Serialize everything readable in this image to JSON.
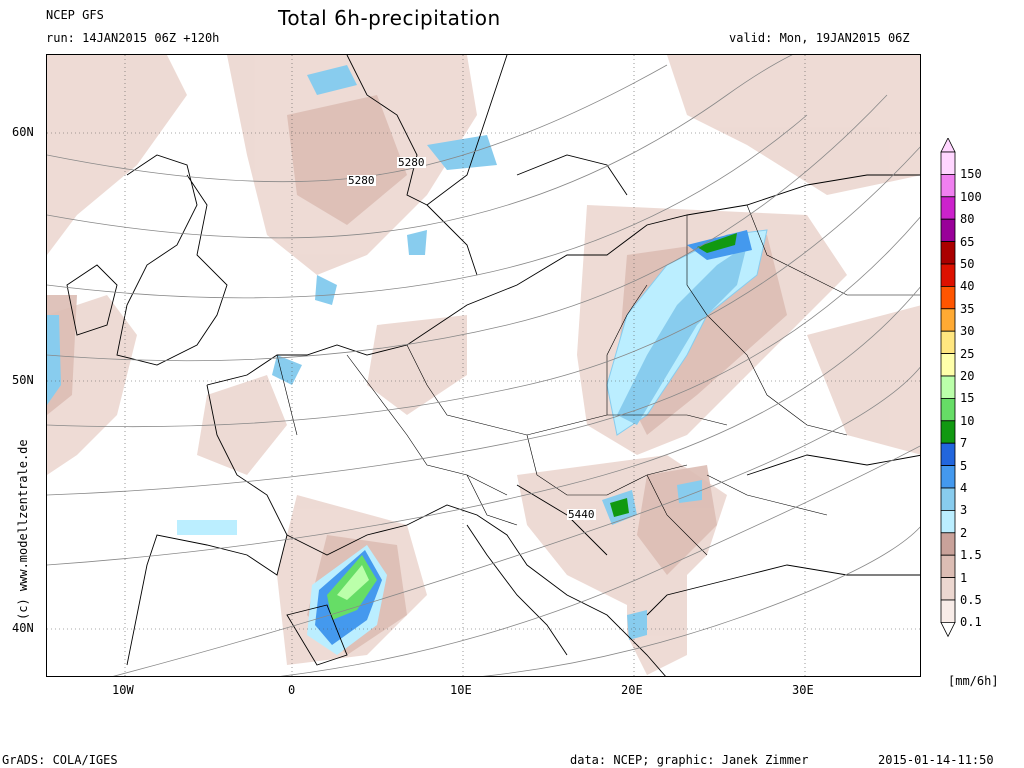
{
  "header": {
    "model": "NCEP GFS",
    "run": "run: 14JAN2015 06Z +120h",
    "title": "Total 6h-precipitation",
    "valid": "valid: Mon, 19JAN2015 06Z"
  },
  "map": {
    "x_ticks": [
      "10W",
      "0",
      "10E",
      "20E",
      "30E"
    ],
    "y_ticks": [
      "60N",
      "50N",
      "40N"
    ],
    "contour_labels": [
      "5280",
      "5280",
      "5440"
    ],
    "watermark": "(c) www.modellzentrale.de"
  },
  "legend": {
    "unit": "[mm/6h]",
    "levels": [
      "150",
      "100",
      "80",
      "65",
      "50",
      "40",
      "35",
      "30",
      "25",
      "20",
      "15",
      "10",
      "7",
      "5",
      "4",
      "3",
      "2",
      "1.5",
      "1",
      "0.5",
      "0.1"
    ],
    "colors": [
      "#ffd6ff",
      "#f080f0",
      "#cc22cc",
      "#990099",
      "#aa0000",
      "#dd1100",
      "#ff5500",
      "#ffaa33",
      "#ffe680",
      "#ffffaa",
      "#bbffaa",
      "#66dd66",
      "#119911",
      "#2266dd",
      "#4499ee",
      "#88ccee",
      "#bbeeff",
      "#c9a29a",
      "#dcbdb4",
      "#ecd7d0",
      "#f8ece8"
    ]
  },
  "footer": {
    "left": "GrADS: COLA/IGES",
    "center": "data: NCEP; graphic: Janek Zimmer",
    "right": "2015-01-14-11:50"
  }
}
